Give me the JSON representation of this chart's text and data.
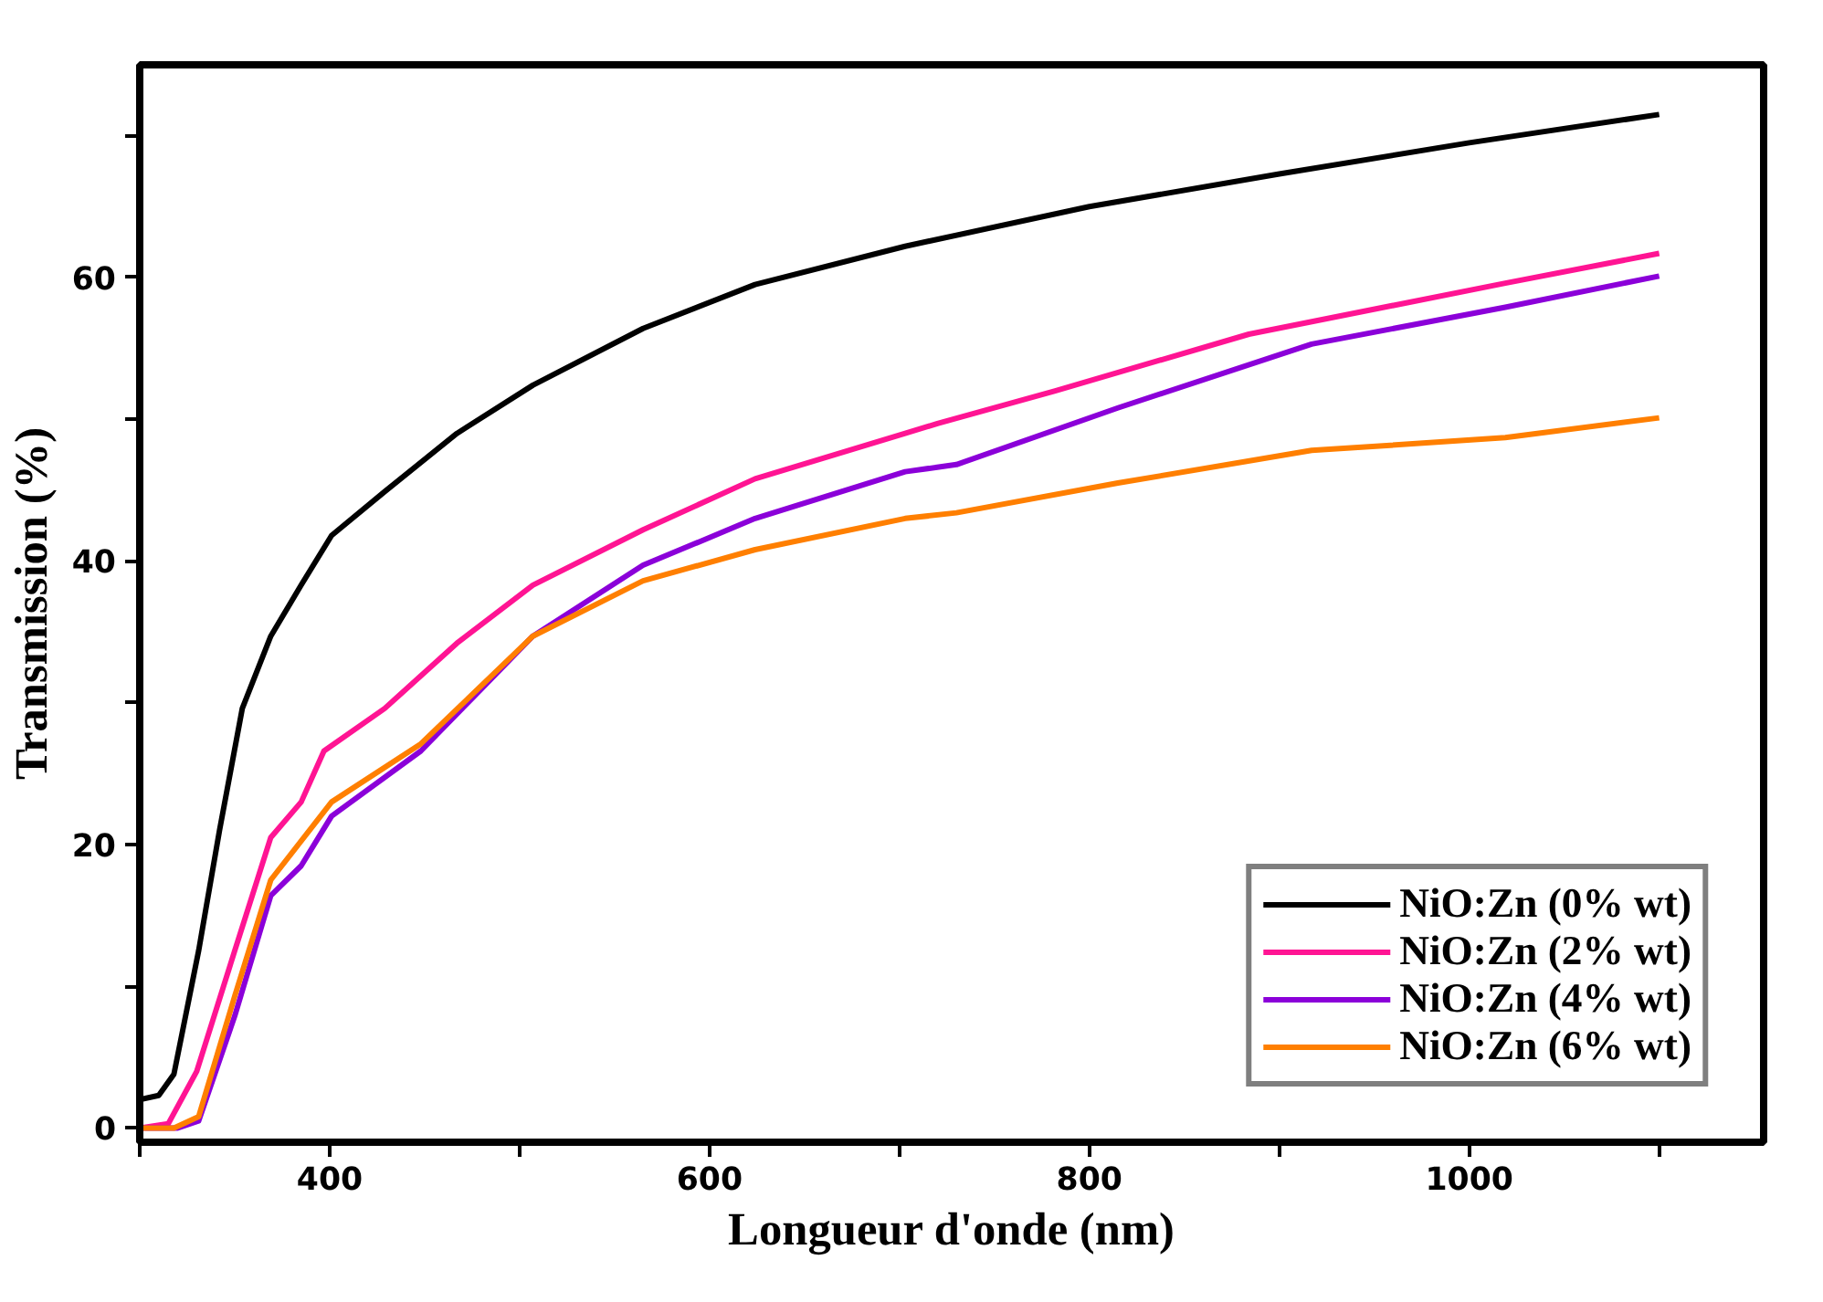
{
  "chart_data": {
    "type": "line",
    "xlabel": "Longueur d'onde (nm)",
    "ylabel": "Transmission (%)",
    "xlim": [
      300,
      1155
    ],
    "ylim": [
      -1,
      75
    ],
    "xticks": [
      {
        "value": 300,
        "label": null
      },
      400,
      {
        "value": 500,
        "label": null
      },
      600,
      {
        "value": 700,
        "label": null
      },
      800,
      {
        "value": 900,
        "label": null
      },
      1000,
      {
        "value": 1100,
        "label": null
      }
    ],
    "yticks": [
      0,
      {
        "value": 10,
        "label": null
      },
      20,
      {
        "value": 30,
        "label": null
      },
      40,
      {
        "value": 50,
        "label": null
      },
      60,
      {
        "value": 70,
        "label": null
      }
    ],
    "grid": false,
    "legend": "bottom right",
    "line_style": "solid",
    "marker": "none",
    "series": [
      {
        "name": "NiO:Zn (0% wt)",
        "color": "#000000",
        "x": [
          300,
          310,
          318,
          331,
          342,
          354,
          369,
          385,
          401,
          429,
          467,
          507,
          565,
          624,
          703,
          800,
          900,
          1000,
          1100
        ],
        "values": [
          2,
          2.3,
          3.8,
          12.5,
          21,
          29.6,
          34.7,
          38.3,
          41.8,
          44.9,
          49,
          52.4,
          56.4,
          59.5,
          62.2,
          65,
          67.3,
          69.5,
          71.5
        ]
      },
      {
        "name": "NiO:Zn (2% wt)",
        "color": "#ff1493",
        "x": [
          300,
          315,
          330,
          350,
          369,
          385,
          397,
          429,
          467,
          507,
          565,
          624,
          703,
          720,
          782,
          884,
          1019,
          1100
        ],
        "values": [
          0,
          0.3,
          4,
          12.5,
          20.5,
          23,
          26.6,
          29.6,
          34.2,
          38.3,
          42.2,
          45.8,
          49,
          49.7,
          52,
          56,
          59.6,
          61.7
        ]
      },
      {
        "name": "NiO:Zn (4% wt)",
        "color": "#8b00d9",
        "x": [
          300,
          320,
          331,
          350,
          369,
          385,
          401,
          448,
          507,
          565,
          624,
          703,
          730,
          815,
          917,
          1019,
          1100
        ],
        "values": [
          0,
          0,
          0.5,
          7.9,
          16.4,
          18.5,
          22,
          26.6,
          34.7,
          39.7,
          43,
          46.3,
          46.8,
          50.8,
          55.3,
          57.9,
          60.1
        ]
      },
      {
        "name": "NiO:Zn (6% wt)",
        "color": "#ff7f00",
        "x": [
          300,
          318,
          331,
          350,
          369,
          401,
          448,
          507,
          565,
          624,
          703,
          730,
          815,
          917,
          1019,
          1100
        ],
        "values": [
          0,
          0,
          0.8,
          9.3,
          17.5,
          23,
          27.1,
          34.7,
          38.6,
          40.8,
          43,
          43.4,
          45.5,
          47.8,
          48.7,
          50.1
        ]
      }
    ]
  }
}
